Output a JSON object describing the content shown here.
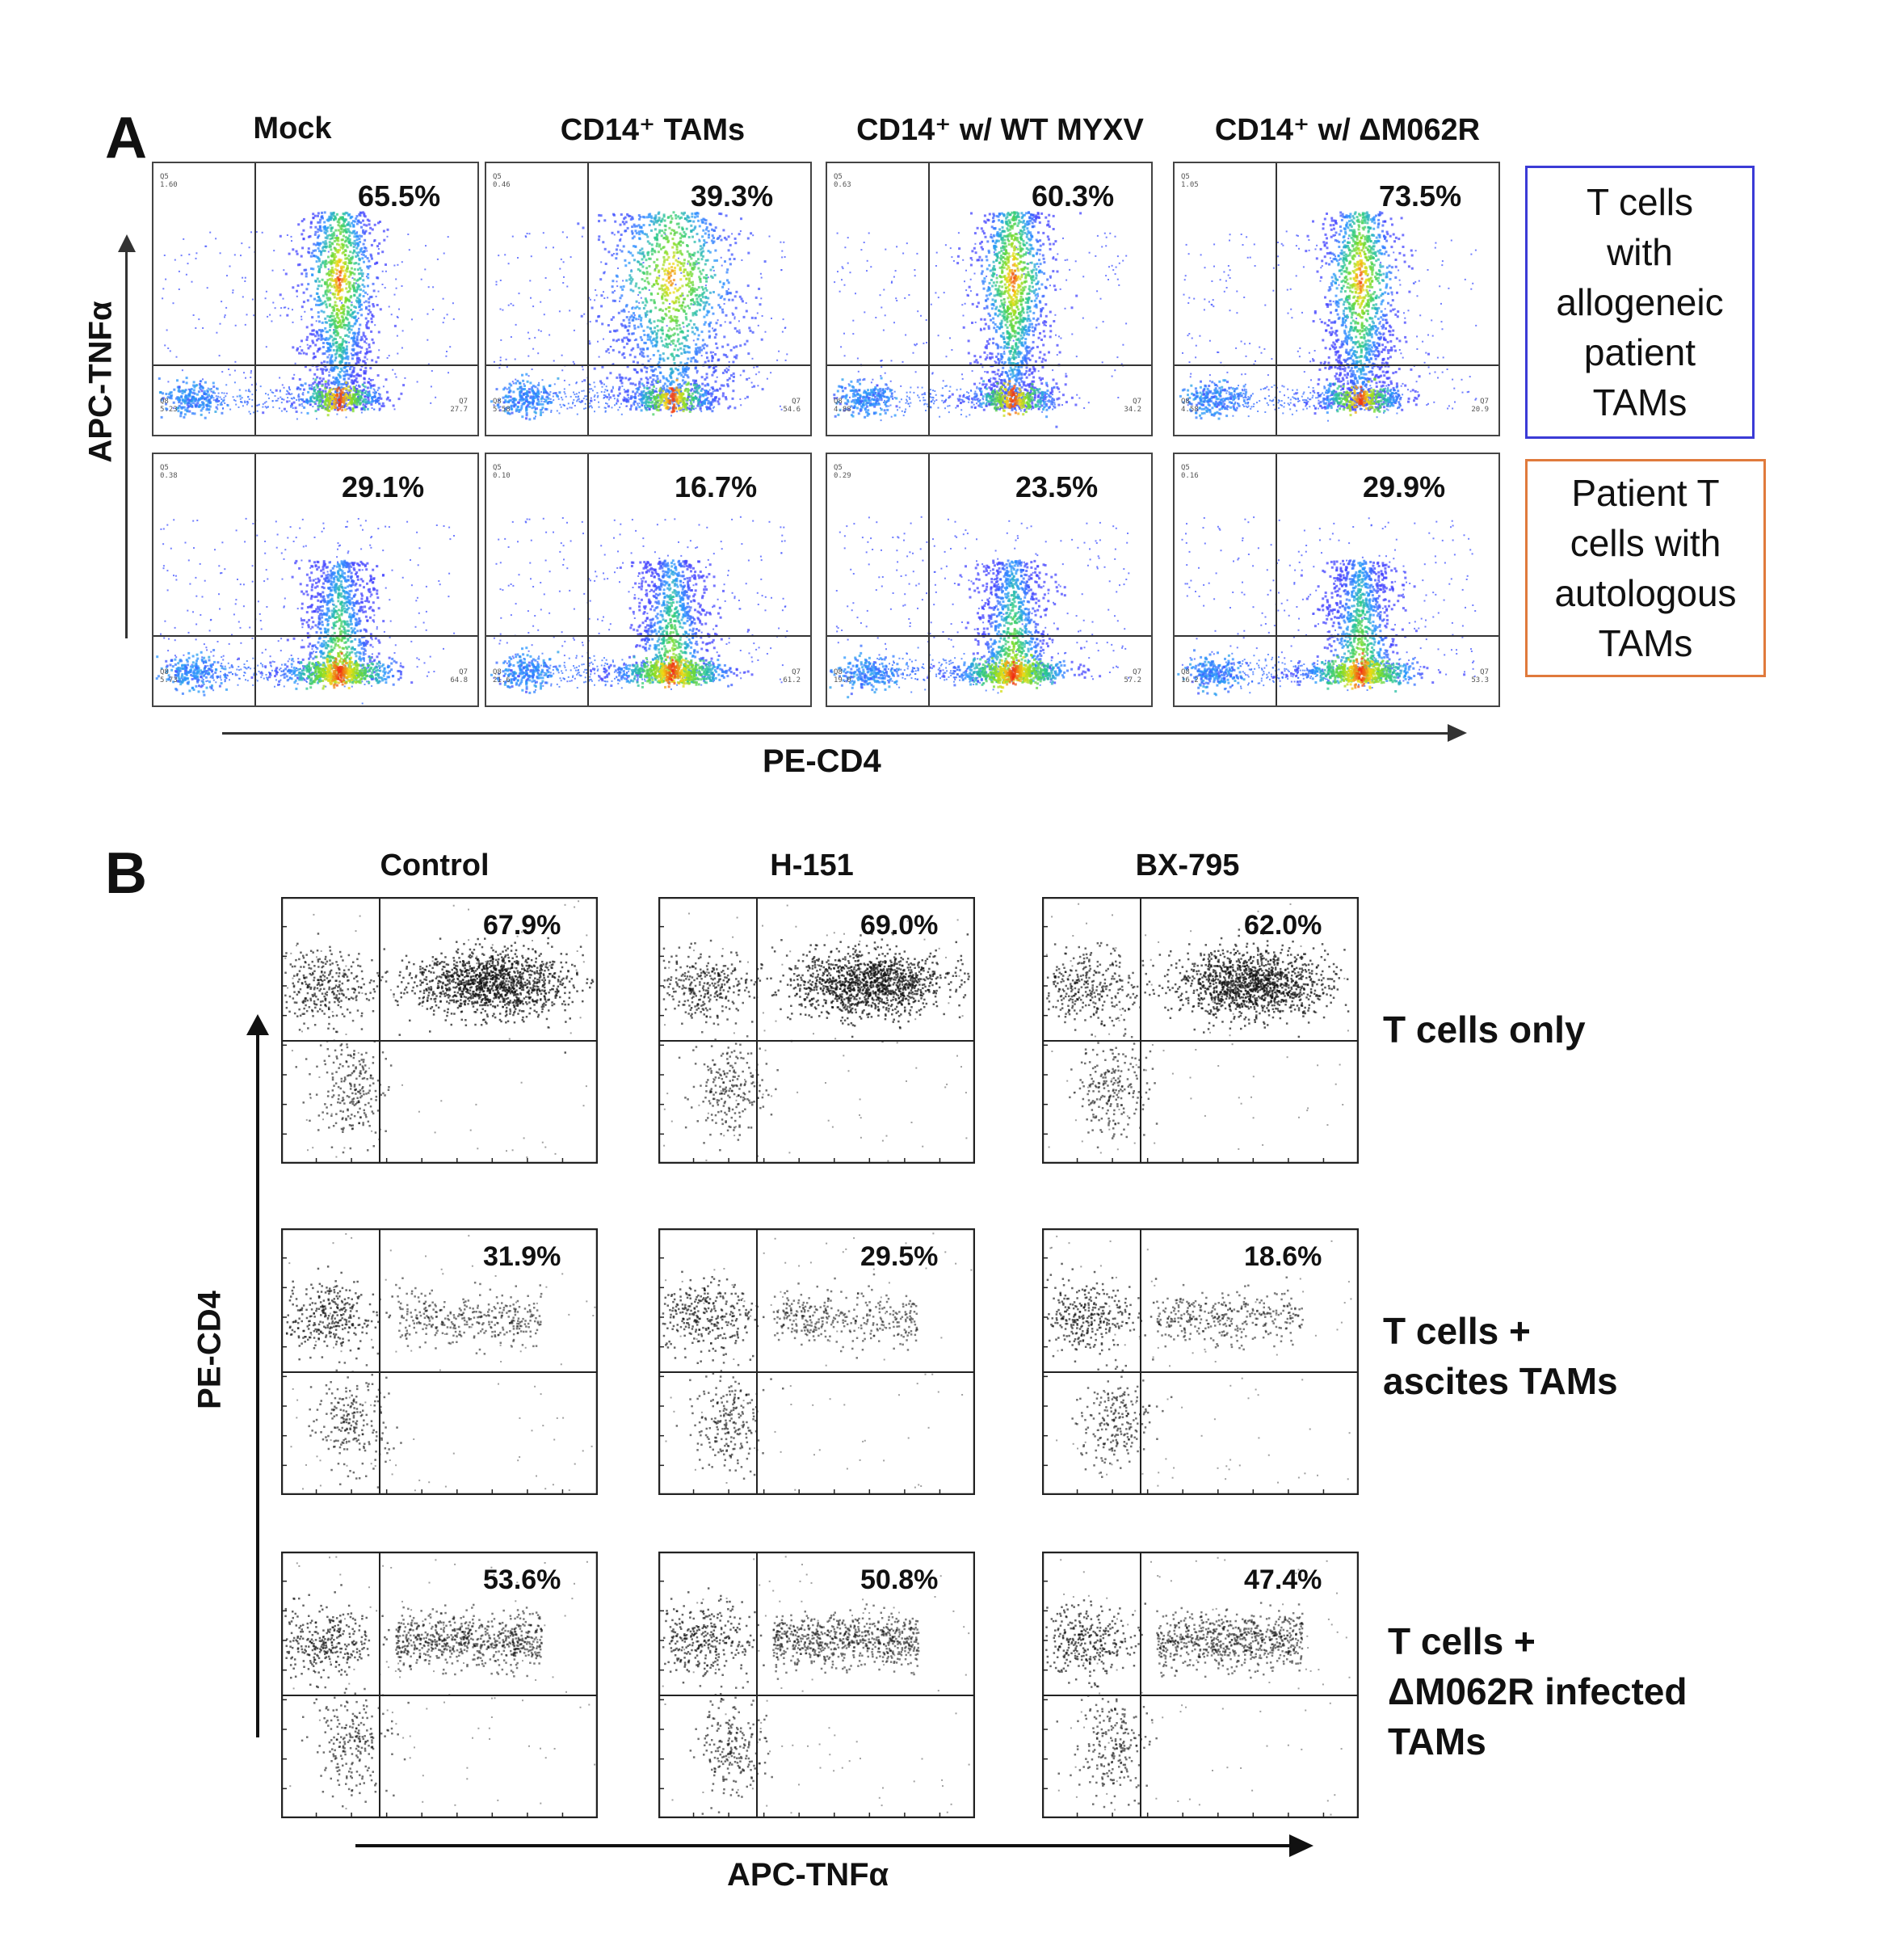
{
  "panel_a": {
    "letter": "A",
    "columns": [
      "Mock",
      "CD14⁺ TAMs",
      "CD14⁺ w/ WT MYXV",
      "CD14⁺ w/ ΔM062R"
    ],
    "y_axis_label": "APC-TNFα",
    "x_axis_label": "PE-CD4",
    "rows": [
      {
        "legend": "T cells with allogeneic patient TAMs",
        "legend_lines": [
          "T cells",
          "with",
          "allogeneic",
          "patient",
          "TAMs"
        ],
        "legend_border_color": "#3b3bd6",
        "percentages": [
          "65.5%",
          "39.3%",
          "60.3%",
          "73.5%"
        ],
        "q5": [
          "1.60",
          "0.46",
          "0.63",
          "1.05"
        ],
        "q8": [
          "5.23",
          "5.58",
          "4.88",
          "4.58"
        ],
        "q7": [
          "27.7",
          "54.6",
          "34.2",
          "20.9"
        ]
      },
      {
        "legend": "Patient T cells with autologous TAMs",
        "legend_lines": [
          "Patient T",
          "cells with",
          "autologous",
          "TAMs"
        ],
        "legend_border_color": "#e07a3c",
        "percentages": [
          "29.1%",
          "16.7%",
          "23.5%",
          "29.9%"
        ],
        "q5": [
          "0.38",
          "0.10",
          "0.29",
          "0.16"
        ],
        "q8": [
          "5.73",
          "21.6",
          "19.0",
          "16.2"
        ],
        "q7": [
          "64.8",
          "61.2",
          "57.2",
          "53.3"
        ]
      }
    ]
  },
  "panel_b": {
    "letter": "B",
    "columns": [
      "Control",
      "H-151",
      "BX-795"
    ],
    "y_axis_label": "PE-CD4",
    "x_axis_label": "APC-TNFα",
    "rows": [
      {
        "label_lines": [
          "T cells only"
        ],
        "percentages": [
          "67.9%",
          "69.0%",
          "62.0%"
        ]
      },
      {
        "label_lines": [
          "T cells +",
          "ascites TAMs"
        ],
        "percentages": [
          "31.9%",
          "29.5%",
          "18.6%"
        ]
      },
      {
        "label_lines": [
          "T cells +",
          "ΔM062R infected",
          "TAMs"
        ],
        "percentages": [
          "53.6%",
          "50.8%",
          "47.4%"
        ]
      }
    ]
  }
}
